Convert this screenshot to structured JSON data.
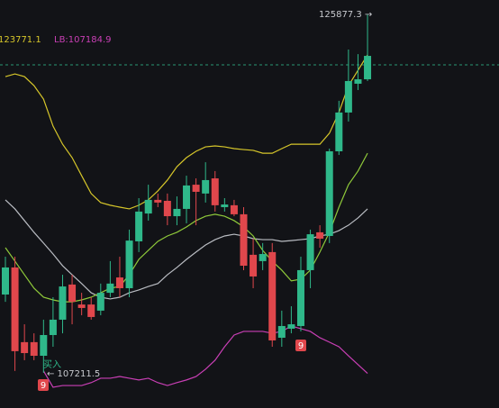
{
  "chart_data": {
    "type": "candlestick",
    "ylim": [
      105380,
      126630
    ],
    "up_color": "#2fb88a",
    "down_color": "#e0474c",
    "price_line": 123250,
    "open": [
      111290,
      112700,
      108810,
      108810,
      108100,
      109180,
      109980,
      111810,
      110770,
      110770,
      110450,
      111380,
      112180,
      111620,
      114060,
      115510,
      116220,
      116170,
      115370,
      115750,
      117010,
      116550,
      117340,
      115840,
      115940,
      115470,
      113360,
      113030,
      113500,
      109040,
      109510,
      109650,
      112560,
      114530,
      114340,
      118750,
      120770,
      122270,
      122500
    ],
    "high": [
      113260,
      113260,
      109740,
      109270,
      109980,
      111150,
      112320,
      112320,
      111380,
      111150,
      111860,
      113030,
      113260,
      114670,
      116310,
      117010,
      116550,
      116550,
      116400,
      117480,
      117340,
      118180,
      117720,
      116310,
      116220,
      115840,
      114200,
      113970,
      113970,
      110450,
      110680,
      113260,
      114670,
      114900,
      118890,
      121380,
      124050,
      123810,
      125877.3
    ],
    "low": [
      110910,
      107310,
      107870,
      107870,
      107211.5,
      108570,
      109270,
      109740,
      110210,
      109980,
      110210,
      111150,
      111150,
      111150,
      113500,
      115140,
      115840,
      114900,
      114900,
      115000,
      114900,
      116080,
      115610,
      115610,
      115370,
      112560,
      111620,
      112560,
      108570,
      108570,
      109270,
      109370,
      111620,
      113730,
      113970,
      118560,
      120300,
      121940,
      122410
    ],
    "close": [
      112700,
      108340,
      108240,
      108100,
      109180,
      109980,
      111710,
      110910,
      110590,
      110120,
      111380,
      111860,
      111620,
      114100,
      115610,
      116220,
      116080,
      115370,
      115750,
      116970,
      116640,
      117250,
      115940,
      115980,
      115470,
      112790,
      112230,
      113400,
      108900,
      109650,
      109740,
      112560,
      114430,
      114200,
      118750,
      120770,
      122410,
      122500,
      123720
    ],
    "series": [
      {
        "color": "#d6c62a",
        "values": [
          122640,
          122780,
          122640,
          122170,
          121470,
          120060,
          119120,
          118420,
          117480,
          116550,
          116080,
          115940,
          115840,
          115750,
          115940,
          116220,
          116690,
          117250,
          117950,
          118420,
          118750,
          118980,
          119030,
          118980,
          118890,
          118840,
          118800,
          118650,
          118650,
          118890,
          119120,
          119120,
          119120,
          119120,
          119690,
          120770,
          122170,
          122970,
          123771.1
        ]
      },
      {
        "color": "#b9bcc2",
        "values": [
          116220,
          115750,
          115140,
          114530,
          113970,
          113400,
          112790,
          112320,
          111860,
          111380,
          111150,
          111060,
          111150,
          111380,
          111530,
          111710,
          111860,
          112320,
          112700,
          113120,
          113500,
          113870,
          114150,
          114340,
          114430,
          114340,
          114200,
          114150,
          114150,
          114060,
          114100,
          114150,
          114200,
          114340,
          114430,
          114620,
          114900,
          115280,
          115750
        ]
      },
      {
        "color": "#8fc93a",
        "values": [
          113730,
          113030,
          112320,
          111620,
          111150,
          111010,
          110910,
          110910,
          111010,
          111150,
          111380,
          111620,
          111710,
          112320,
          113120,
          113590,
          114060,
          114340,
          114530,
          114810,
          115140,
          115370,
          115470,
          115370,
          115140,
          114810,
          114340,
          113590,
          113030,
          112560,
          112000,
          112090,
          112560,
          113500,
          114530,
          115840,
          117010,
          117720,
          118650
        ]
      },
      {
        "color": "#c93fb5",
        "values": [
          null,
          null,
          null,
          null,
          107310,
          106460,
          106550,
          106550,
          106550,
          106700,
          106930,
          106930,
          107020,
          106930,
          106840,
          106930,
          106700,
          106550,
          106700,
          106840,
          107020,
          107400,
          107870,
          108570,
          109180,
          109370,
          109370,
          109370,
          109270,
          109370,
          109650,
          109510,
          109370,
          109040,
          108810,
          108570,
          108100,
          107640,
          107184.9
        ]
      }
    ],
    "annotations": {
      "high": "125877.3 →",
      "low": "← 107211.5",
      "upper_band": "123771.1",
      "lower_band": "LB:107184.9",
      "buy": "买入",
      "signal_1": "9",
      "signal_2": "9"
    }
  }
}
